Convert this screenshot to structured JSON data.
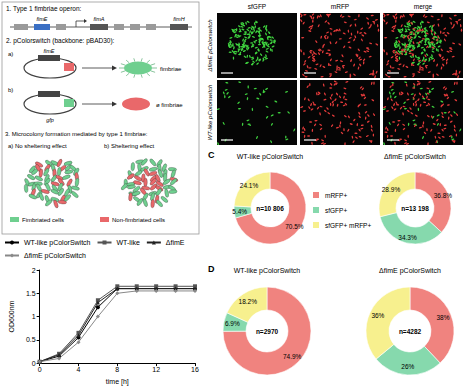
{
  "schematic": {
    "step1": "1. Type 1 fimbriae operon:",
    "step1_genes": [
      "fimE",
      "fimA",
      "fimH"
    ],
    "step2": "2. pColorswitch (backbone: pBAD30):",
    "step2a": {
      "letter": "a)",
      "gene": "fimE",
      "result": "fimbriae"
    },
    "step2b": {
      "letter": "b)",
      "gene": "gfp",
      "result": "ø fimbriae"
    },
    "step3": "3. Microcolony formation mediated by type 1 fimbriae:",
    "step3a": "a) No sheltering effect",
    "step3b": "b) Sheltering effect",
    "legend": [
      {
        "label": "Fimbriated cells",
        "color": "#6fcf8f"
      },
      {
        "label": "Non-fimbriated cells",
        "color": "#e9686a"
      }
    ]
  },
  "microscopy": {
    "columns": [
      "sfGFP",
      "mRFP",
      "merge"
    ],
    "rows": [
      "ΔfimE pColorswitch",
      "WT-like pColorswitch"
    ]
  },
  "chart_data": [
    {
      "type": "line",
      "x_label": "time [h]",
      "y_label": "OD600nm",
      "x": [
        0,
        2,
        4,
        6,
        8,
        10,
        12,
        14,
        16
      ],
      "series": [
        {
          "name": "WT-like pColorSwitch",
          "color": "#000000",
          "marker": "circle",
          "line_style": "solid",
          "values": [
            0.03,
            0.15,
            0.55,
            1.2,
            1.6,
            1.6,
            1.6,
            1.6,
            1.6
          ]
        },
        {
          "name": "WT-like",
          "color": "#555555",
          "marker": "rect",
          "line_style": "solid",
          "values": [
            0.03,
            0.2,
            0.65,
            1.35,
            1.65,
            1.65,
            1.65,
            1.65,
            1.65
          ]
        },
        {
          "name": "ΔfimE",
          "color": "#222222",
          "marker": "triangle",
          "line_style": "solid",
          "values": [
            0.03,
            0.18,
            0.6,
            1.3,
            1.6,
            1.6,
            1.6,
            1.6,
            1.6
          ]
        },
        {
          "name": "ΔfimE pColorSwitch",
          "color": "#888888",
          "marker": "diamond",
          "line_style": "solid",
          "values": [
            0.03,
            0.1,
            0.45,
            1.0,
            1.5,
            1.55,
            1.55,
            1.55,
            1.55
          ]
        }
      ],
      "xlim": [
        0,
        16
      ],
      "xticks": [
        0,
        4,
        8,
        12,
        16
      ],
      "ylim": [
        0,
        2
      ],
      "yticks": [
        0,
        0.5,
        1,
        1.5,
        2
      ],
      "legend": "top",
      "grid": false
    },
    {
      "type": "pie",
      "panel": "C",
      "title": "WT-like pColorSwitch",
      "center_label": "n=10 806",
      "categories": [
        "mRFP+",
        "sfGFP+",
        "sfGFP+ mRFP+"
      ],
      "values": [
        70.5,
        5.4,
        24.1
      ],
      "value_labels": [
        "70.5%",
        "5.4%",
        "24.1%"
      ],
      "colors": [
        "#f0837f",
        "#86d9ad",
        "#f7f08e"
      ],
      "data_labels": true,
      "legend": "center"
    },
    {
      "type": "pie",
      "title": "ΔfimE pColorSwitch",
      "center_label": "n=13 198",
      "categories": [
        "mRFP+",
        "sfGFP+",
        "sfGFP+ mRFP+"
      ],
      "values": [
        36.8,
        34.3,
        28.9
      ],
      "value_labels": [
        "36.8%",
        "34.3%",
        "28.9%"
      ],
      "colors": [
        "#f0837f",
        "#86d9ad",
        "#f7f08e"
      ],
      "data_labels": true
    },
    {
      "type": "pie",
      "panel": "D",
      "title": "WT-like pColorSwitch",
      "center_label": "n=2970",
      "categories": [
        "mRFP+",
        "sfGFP+",
        "sfGFP+ mRFP+"
      ],
      "values": [
        74.9,
        6.9,
        18.2
      ],
      "value_labels": [
        "74.9%",
        "6.9%",
        "18.2%"
      ],
      "colors": [
        "#f0837f",
        "#86d9ad",
        "#f7f08e"
      ],
      "data_labels": true
    },
    {
      "type": "pie",
      "title": "ΔfimE pColorSwitch",
      "center_label": "n=4282",
      "categories": [
        "mRFP+",
        "sfGFP+",
        "sfGFP+ mRFP+"
      ],
      "values": [
        38,
        26,
        36
      ],
      "value_labels": [
        "38%",
        "26%",
        "36%"
      ],
      "colors": [
        "#f0837f",
        "#86d9ad",
        "#f7f08e"
      ],
      "data_labels": true
    }
  ]
}
